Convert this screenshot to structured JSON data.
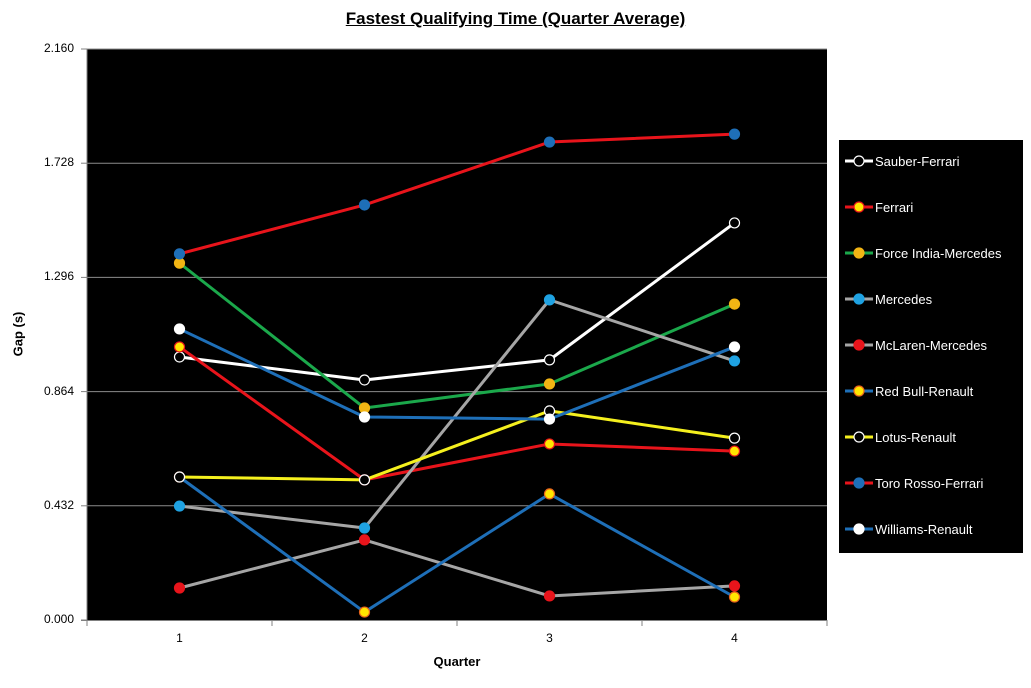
{
  "chart_data": {
    "type": "line",
    "title": "Fastest Qualifying Time (Quarter Average)",
    "xlabel": "Quarter",
    "ylabel": "Gap (s)",
    "categories": [
      "1",
      "2",
      "3",
      "4"
    ],
    "ylim": [
      0,
      2.16
    ],
    "yticks": [
      "0.000",
      "0.432",
      "0.864",
      "1.296",
      "1.728",
      "2.160"
    ],
    "grid": true,
    "legend_position": "right",
    "background": "#000000",
    "series": [
      {
        "name": "Sauber-Ferrari",
        "line_color": "#FFFFFF",
        "marker_fill": "#000000",
        "marker_edge": "#FFFFFF",
        "values": [
          0.995,
          0.908,
          0.984,
          1.502
        ]
      },
      {
        "name": "Ferrari",
        "line_color": "#E8141B",
        "marker_fill": "#FFE600",
        "marker_edge": "#E8141B",
        "values": [
          1.033,
          0.53,
          0.666,
          0.639
        ]
      },
      {
        "name": "Force India-Mercedes",
        "line_color": "#1BA84B",
        "marker_fill": "#F2B514",
        "marker_edge": "#F2B514",
        "values": [
          1.35,
          0.802,
          0.893,
          1.195
        ]
      },
      {
        "name": "Mercedes",
        "line_color": "#A6A6A6",
        "marker_fill": "#1FA2E2",
        "marker_edge": "#1FA2E2",
        "values": [
          0.431,
          0.348,
          1.211,
          0.98
        ]
      },
      {
        "name": "McLaren-Mercedes",
        "line_color": "#A6A6A6",
        "marker_fill": "#E8141B",
        "marker_edge": "#E8141B",
        "values": [
          0.121,
          0.303,
          0.091,
          0.129
        ]
      },
      {
        "name": "Red Bull-Renault",
        "line_color": "#1E6FB8",
        "marker_fill": "#FFE600",
        "marker_edge": "#E8641B",
        "values": [
          0.541,
          0.03,
          0.477,
          0.087
        ]
      },
      {
        "name": "Lotus-Renault",
        "line_color": "#F5F01E",
        "marker_fill": "#000000",
        "marker_edge": "#FFFFFF",
        "values": [
          0.541,
          0.53,
          0.791,
          0.688
        ]
      },
      {
        "name": "Toro Rosso-Ferrari",
        "line_color": "#E8141B",
        "marker_fill": "#1E6FB8",
        "marker_edge": "#1E6FB8",
        "values": [
          1.385,
          1.57,
          1.808,
          1.838
        ]
      },
      {
        "name": "Williams-Renault",
        "line_color": "#1E6FB8",
        "marker_fill": "#FFFFFF",
        "marker_edge": "#FFFFFF",
        "values": [
          1.101,
          0.768,
          0.76,
          1.033
        ]
      }
    ]
  }
}
